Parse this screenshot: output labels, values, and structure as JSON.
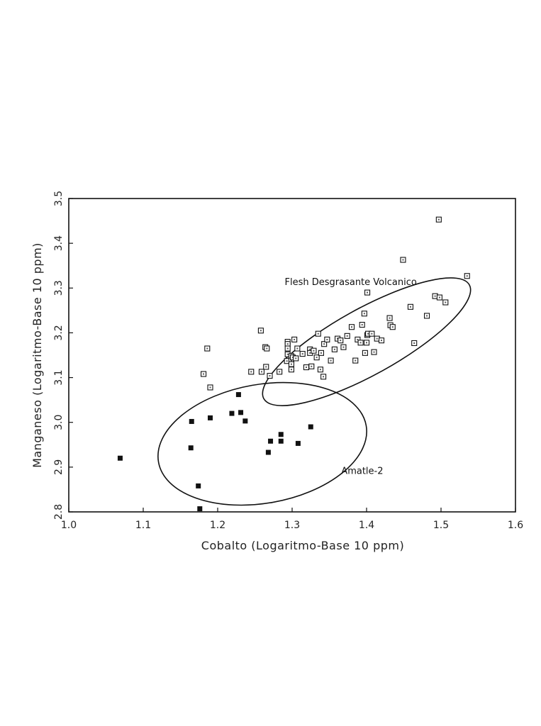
{
  "chart_data": {
    "type": "scatter",
    "xlabel": "Cobalto (Logaritmo-Base 10 ppm)",
    "ylabel": "Manganeso (Logaritmo-Base 10 ppm)",
    "xlim": [
      1.0,
      1.6
    ],
    "ylim": [
      2.8,
      3.5
    ],
    "x_ticks": [
      "1.0",
      "1.1",
      "1.2",
      "1.3",
      "1.4",
      "1.5",
      "1.6"
    ],
    "y_ticks": [
      "2.8",
      "2.9",
      "3.0",
      "3.1",
      "3.2",
      "3.3",
      "3.4",
      "3.5"
    ],
    "grid": false,
    "legend": "none",
    "series": [
      {
        "marker": "open-square",
        "points": [
          [
            1.181,
            3.108
          ],
          [
            1.186,
            3.165
          ],
          [
            1.19,
            3.078
          ],
          [
            1.258,
            3.205
          ],
          [
            1.264,
            3.168
          ],
          [
            1.266,
            3.165
          ],
          [
            1.245,
            3.113
          ],
          [
            1.259,
            3.113
          ],
          [
            1.265,
            3.124
          ],
          [
            1.27,
            3.104
          ],
          [
            1.283,
            3.113
          ],
          [
            1.294,
            3.18
          ],
          [
            1.294,
            3.175
          ],
          [
            1.294,
            3.165
          ],
          [
            1.294,
            3.152
          ],
          [
            1.293,
            3.137
          ],
          [
            1.299,
            3.148
          ],
          [
            1.299,
            3.138
          ],
          [
            1.301,
            3.145
          ],
          [
            1.303,
            3.185
          ],
          [
            1.305,
            3.143
          ],
          [
            1.307,
            3.165
          ],
          [
            1.299,
            3.118
          ],
          [
            1.299,
            3.13
          ],
          [
            1.314,
            3.153
          ],
          [
            1.319,
            3.123
          ],
          [
            1.324,
            3.163
          ],
          [
            1.324,
            3.155
          ],
          [
            1.326,
            3.125
          ],
          [
            1.329,
            3.16
          ],
          [
            1.333,
            3.145
          ],
          [
            1.335,
            3.198
          ],
          [
            1.339,
            3.155
          ],
          [
            1.338,
            3.118
          ],
          [
            1.342,
            3.102
          ],
          [
            1.343,
            3.175
          ],
          [
            1.347,
            3.185
          ],
          [
            1.352,
            3.138
          ],
          [
            1.357,
            3.163
          ],
          [
            1.361,
            3.187
          ],
          [
            1.365,
            3.183
          ],
          [
            1.369,
            3.168
          ],
          [
            1.374,
            3.193
          ],
          [
            1.38,
            3.213
          ],
          [
            1.385,
            3.138
          ],
          [
            1.388,
            3.185
          ],
          [
            1.392,
            3.178
          ],
          [
            1.394,
            3.218
          ],
          [
            1.397,
            3.243
          ],
          [
            1.398,
            3.155
          ],
          [
            1.401,
            3.195
          ],
          [
            1.4,
            3.178
          ],
          [
            1.402,
            3.198
          ],
          [
            1.401,
            3.29
          ],
          [
            1.407,
            3.198
          ],
          [
            1.41,
            3.157
          ],
          [
            1.414,
            3.187
          ],
          [
            1.42,
            3.183
          ],
          [
            1.431,
            3.233
          ],
          [
            1.432,
            3.217
          ],
          [
            1.435,
            3.213
          ],
          [
            1.449,
            3.363
          ],
          [
            1.459,
            3.258
          ],
          [
            1.464,
            3.177
          ],
          [
            1.481,
            3.238
          ],
          [
            1.492,
            3.282
          ],
          [
            1.498,
            3.279
          ],
          [
            1.497,
            3.453
          ],
          [
            1.506,
            3.268
          ],
          [
            1.535,
            3.327
          ]
        ]
      },
      {
        "marker": "filled-square",
        "points": [
          [
            1.069,
            2.92
          ],
          [
            1.165,
            3.002
          ],
          [
            1.164,
            2.943
          ],
          [
            1.174,
            2.858
          ],
          [
            1.176,
            2.807
          ],
          [
            1.19,
            3.01
          ],
          [
            1.219,
            3.02
          ],
          [
            1.228,
            3.062
          ],
          [
            1.231,
            3.022
          ],
          [
            1.237,
            3.003
          ],
          [
            1.268,
            2.933
          ],
          [
            1.271,
            2.958
          ],
          [
            1.285,
            2.973
          ],
          [
            1.285,
            2.958
          ],
          [
            1.308,
            2.953
          ],
          [
            1.325,
            2.99
          ]
        ]
      }
    ],
    "ellipses": [
      {
        "label": "Flesh Desgrasante Volcanico",
        "cx": 1.4,
        "cy": 3.18,
        "angle_deg": -29,
        "rx_frac": 0.263,
        "ry_frac": 0.074
      },
      {
        "label": "Amatle-2",
        "cx": 1.26,
        "cy": 2.952,
        "angle_deg": -10,
        "rx_frac": 0.236,
        "ry_frac": 0.133
      }
    ],
    "annotations": [
      {
        "text": "Flesh Desgrasante Volcanico",
        "x": 1.29,
        "y": 3.307
      },
      {
        "text": "Amatle-2",
        "x": 1.366,
        "y": 2.885
      }
    ]
  }
}
